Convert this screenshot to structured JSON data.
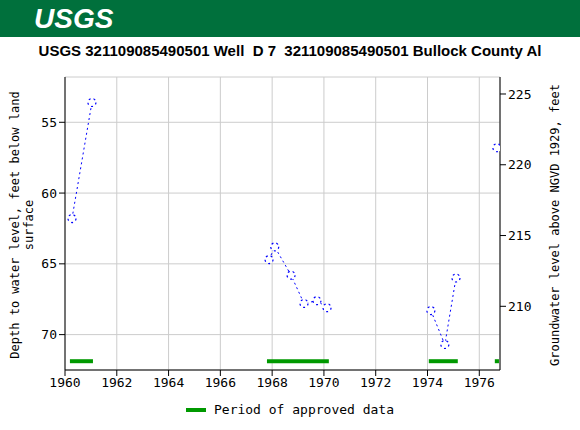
{
  "chart_data": {
    "type": "line",
    "logo": "USGS",
    "title": "USGS 321109085490501 Well  D 7  321109085490501 Bullock County Al",
    "ylabel": "Depth to water level, feet below land\nsurface",
    "y2label": "Groundwater level above NGVD 1929, feet",
    "x": [
      1960.27,
      1961.04,
      null,
      1967.88,
      1968.1,
      1968.73,
      1969.23,
      1969.73,
      1970.12,
      null,
      1974.13,
      1974.67,
      1975.1,
      null,
      1976.68
    ],
    "series": [
      {
        "color": "#0000ff",
        "marker": "circle",
        "line_style": "dotted",
        "values": [
          61.8,
          53.6,
          null,
          64.7,
          63.8,
          65.8,
          67.8,
          67.6,
          68.1,
          null,
          68.3,
          70.7,
          66.0,
          null,
          56.8
        ]
      }
    ],
    "xlim": [
      1960,
      1976.8
    ],
    "xticks": [
      1960,
      1962,
      1964,
      1966,
      1968,
      1970,
      1972,
      1974,
      1976
    ],
    "ylim": [
      72.5,
      51.8
    ],
    "yticks": [
      55,
      60,
      65,
      70
    ],
    "y2lim": [
      205.5,
      226.2
    ],
    "y2ticks": [
      210,
      215,
      220,
      225
    ],
    "grid": true,
    "approved_periods": {
      "name": "Period of approved data",
      "color": "#009900",
      "ranges": [
        [
          1960.19,
          1961.08
        ],
        [
          1967.8,
          1970.19
        ],
        [
          1974.05,
          1975.17
        ],
        [
          1976.6,
          1976.76
        ]
      ]
    }
  }
}
